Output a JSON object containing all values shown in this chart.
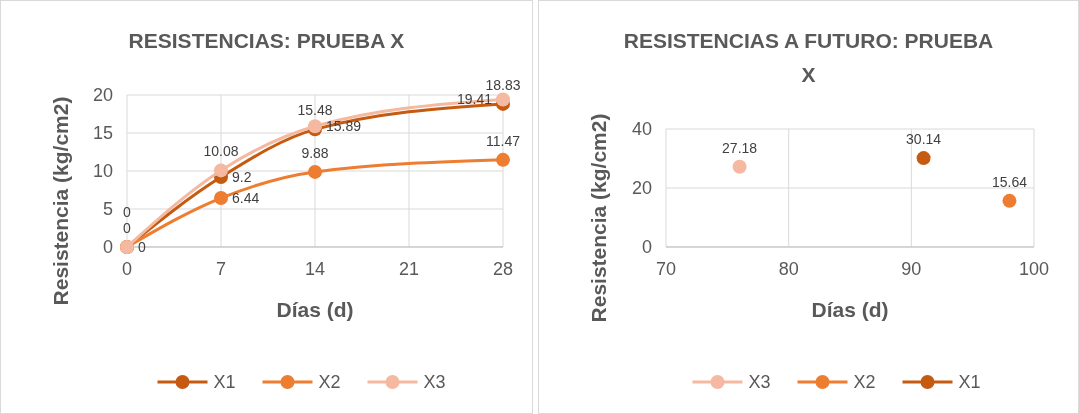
{
  "chart_data": [
    {
      "type": "line",
      "title": "RESISTENCIAS: PRUEBA X",
      "xlabel": "Días (d)",
      "ylabel": "Resistencia (kg/cm2)",
      "x": [
        0,
        7,
        14,
        28
      ],
      "xlim": [
        0,
        28
      ],
      "xticks": [
        0,
        7,
        14,
        21,
        28
      ],
      "ylim": [
        0,
        20
      ],
      "yticks": [
        0,
        5,
        10,
        15,
        20
      ],
      "grid": true,
      "legend": "bottom",
      "marker": "circle",
      "data_labels": true,
      "series": [
        {
          "name": "X1",
          "color": "#c55a11",
          "values": [
            0,
            9.2,
            15.48,
            18.83
          ]
        },
        {
          "name": "X2",
          "color": "#ed7d31",
          "values": [
            0,
            6.44,
            9.88,
            11.47
          ]
        },
        {
          "name": "X3",
          "color": "#f4b9a0",
          "values": [
            0,
            10.08,
            15.89,
            19.41
          ]
        }
      ]
    },
    {
      "type": "scatter",
      "title": "RESISTENCIAS A FUTURO: PRUEBA X",
      "xlabel": "Días (d)",
      "ylabel": "Resistencia (kg/cm2)",
      "xlim": [
        70,
        100
      ],
      "xticks": [
        70,
        80,
        90,
        100
      ],
      "ylim": [
        0,
        40
      ],
      "yticks": [
        0,
        20,
        40
      ],
      "grid": true,
      "legend": "bottom",
      "marker": "circle",
      "data_labels": true,
      "series": [
        {
          "name": "X3",
          "color": "#f4b9a0",
          "x": [
            76
          ],
          "values": [
            27.18
          ]
        },
        {
          "name": "X2",
          "color": "#ed7d31",
          "x": [
            98
          ],
          "values": [
            15.64
          ]
        },
        {
          "name": "X1",
          "color": "#c55a11",
          "x": [
            91
          ],
          "values": [
            30.14
          ]
        }
      ]
    }
  ]
}
